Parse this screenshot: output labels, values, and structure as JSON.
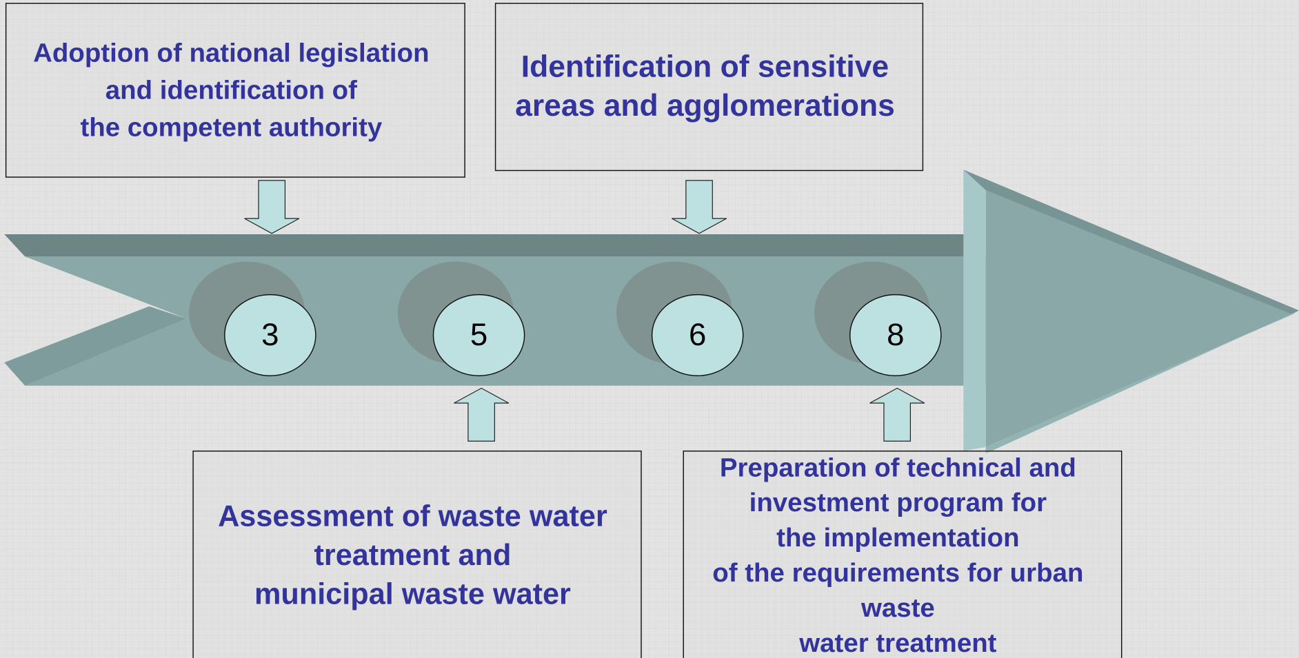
{
  "boxes": [
    {
      "lines": [
        "Adoption of national legislation",
        "and identification of",
        "the competent authority"
      ]
    },
    {
      "lines": [
        "Identification of sensitive",
        "areas and agglomerations"
      ]
    },
    {
      "lines": [
        "Assessment of waste water",
        "treatment and",
        "municipal waste water"
      ]
    },
    {
      "lines": [
        "Preparation of technical and",
        "investment program for",
        "the implementation",
        "of the requirements for urban",
        "waste",
        "water treatment"
      ]
    }
  ],
  "milestones": [
    {
      "label": "3"
    },
    {
      "label": "5"
    },
    {
      "label": "6"
    },
    {
      "label": "8"
    }
  ]
}
